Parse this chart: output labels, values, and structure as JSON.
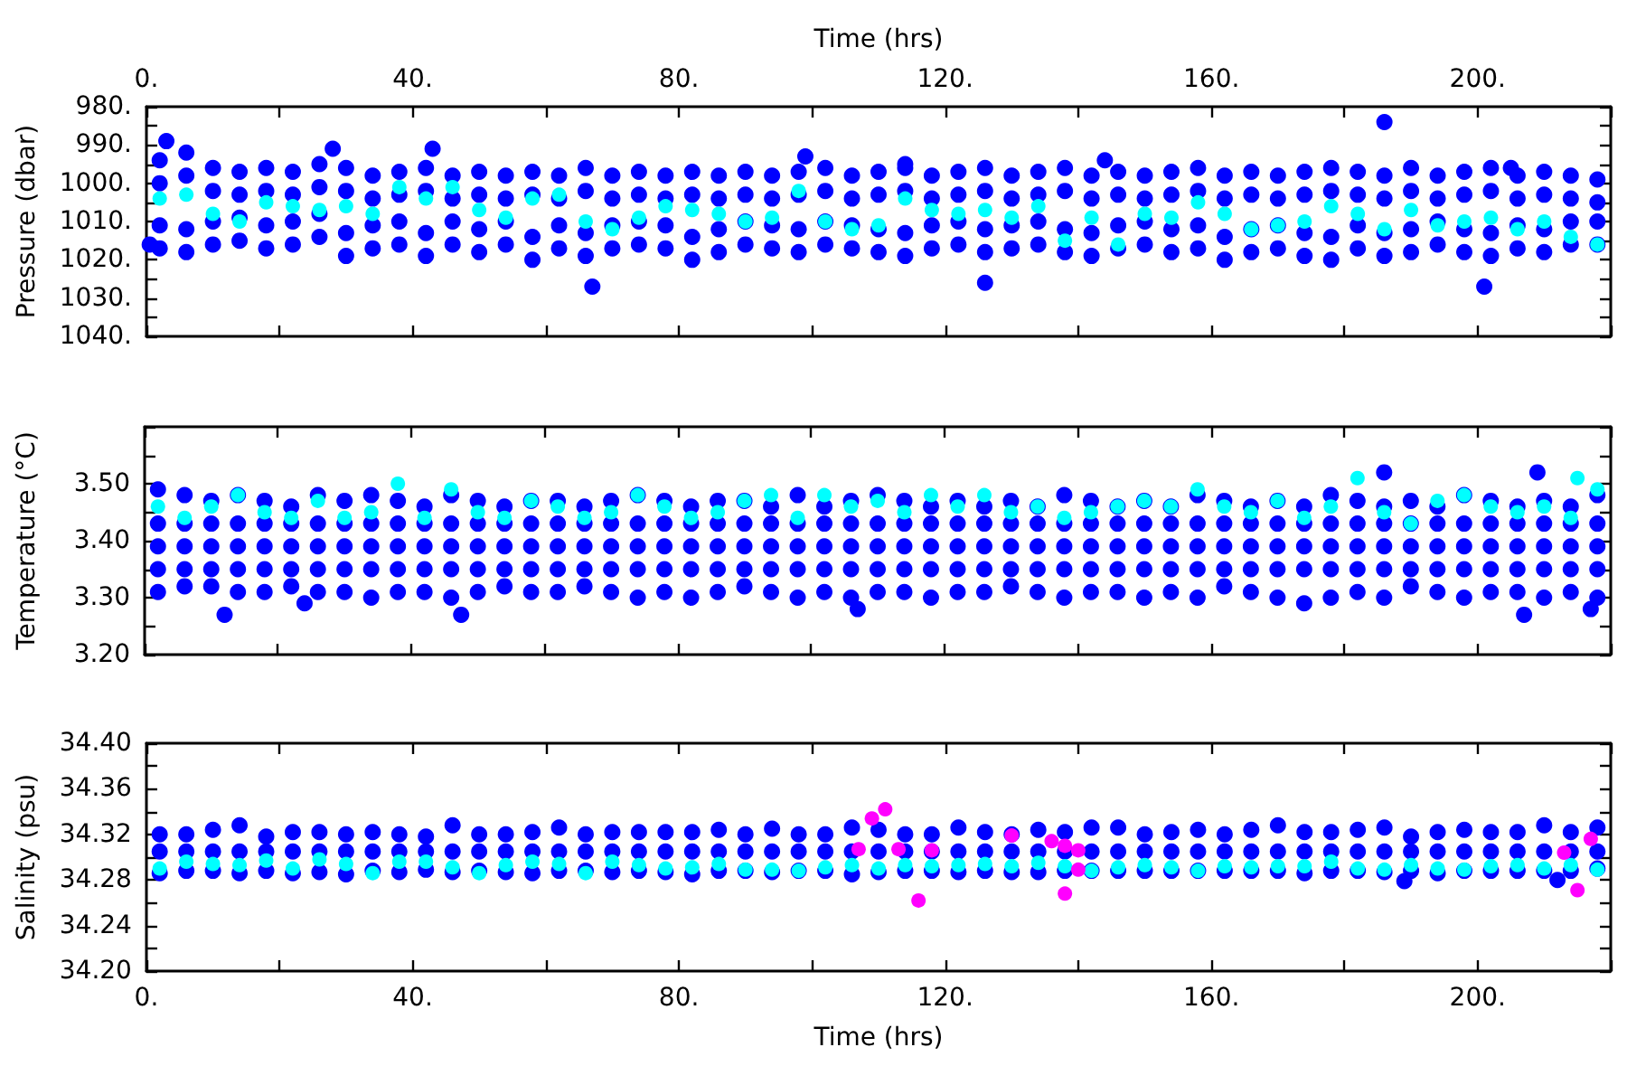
{
  "chart_data": [
    {
      "type": "scatter",
      "ylabel": "Pressure (dbar)",
      "x2label": "Time (hrs)",
      "marker": "circle",
      "tick_labels": "y",
      "xlim": [
        0,
        220
      ],
      "xticks": [
        0,
        20,
        40,
        60,
        80,
        100,
        120,
        140,
        160,
        180,
        200,
        220
      ],
      "x2lim": [
        0,
        220
      ],
      "x2ticks": [
        {
          "value": 0,
          "label": "0."
        },
        {
          "value": 20,
          "label": null
        },
        {
          "value": 40,
          "label": "40."
        },
        {
          "value": 60,
          "label": null
        },
        {
          "value": 80,
          "label": "80."
        },
        {
          "value": 100,
          "label": null
        },
        {
          "value": 120,
          "label": "120."
        },
        {
          "value": 140,
          "label": null
        },
        {
          "value": 160,
          "label": "160."
        },
        {
          "value": 180,
          "label": null
        },
        {
          "value": 200,
          "label": "200."
        },
        {
          "value": 220,
          "label": null
        }
      ],
      "ylim": [
        1040,
        980
      ],
      "yticks": [
        {
          "value": 980,
          "label": "980."
        },
        {
          "value": 985,
          "label": null
        },
        {
          "value": 990,
          "label": "990."
        },
        {
          "value": 995,
          "label": null
        },
        {
          "value": 1000,
          "label": "1000."
        },
        {
          "value": 1005,
          "label": null
        },
        {
          "value": 1010,
          "label": "1010."
        },
        {
          "value": 1015,
          "label": null
        },
        {
          "value": 1020,
          "label": "1020."
        },
        {
          "value": 1025,
          "label": null
        },
        {
          "value": 1030,
          "label": "1030."
        },
        {
          "value": 1035,
          "label": null
        },
        {
          "value": 1040,
          "label": "1040."
        }
      ],
      "series": [
        {
          "color": "#0000ff",
          "x": [
            2,
            2,
            2,
            2,
            6,
            6,
            6,
            6,
            10,
            10,
            10,
            10,
            14,
            14,
            14,
            14,
            18,
            18,
            18,
            18,
            22,
            22,
            22,
            22,
            26,
            26,
            26,
            26,
            30,
            30,
            30,
            30,
            34,
            34,
            34,
            34,
            38,
            38,
            38,
            38,
            42,
            42,
            42,
            42,
            46,
            46,
            46,
            46,
            50,
            50,
            50,
            50,
            54,
            54,
            54,
            54,
            58,
            58,
            58,
            58,
            62,
            62,
            62,
            62,
            66,
            66,
            66,
            66,
            70,
            70,
            70,
            70,
            74,
            74,
            74,
            74,
            78,
            78,
            78,
            78,
            82,
            82,
            82,
            82,
            86,
            86,
            86,
            86,
            90,
            90,
            90,
            90,
            94,
            94,
            94,
            94,
            98,
            98,
            98,
            98,
            102,
            102,
            102,
            102,
            106,
            106,
            106,
            106,
            110,
            110,
            110,
            110,
            114,
            114,
            114,
            114,
            118,
            118,
            118,
            118,
            122,
            122,
            122,
            122,
            126,
            126,
            126,
            126,
            130,
            130,
            130,
            130,
            134,
            134,
            134,
            134,
            138,
            138,
            138,
            138,
            142,
            142,
            142,
            142,
            146,
            146,
            146,
            146,
            150,
            150,
            150,
            150,
            154,
            154,
            154,
            154,
            158,
            158,
            158,
            158,
            162,
            162,
            162,
            162,
            166,
            166,
            166,
            166,
            170,
            170,
            170,
            170,
            174,
            174,
            174,
            174,
            178,
            178,
            178,
            178,
            182,
            182,
            182,
            182,
            186,
            186,
            186,
            186,
            190,
            190,
            190,
            190,
            194,
            194,
            194,
            194,
            198,
            198,
            198,
            198,
            202,
            202,
            202,
            202,
            206,
            206,
            206,
            206,
            210,
            210,
            210,
            210,
            214,
            214,
            214,
            214,
            218,
            218,
            218,
            218,
            0.5,
            3,
            28,
            43,
            67,
            99,
            114,
            126,
            144,
            186,
            201,
            205
          ],
          "values": [
            994,
            1000,
            1011,
            1017,
            992,
            998,
            1012,
            1018,
            996,
            1002,
            1010,
            1016,
            997,
            1003,
            1009,
            1015,
            996,
            1002,
            1011,
            1017,
            997,
            1003,
            1010,
            1016,
            995,
            1001,
            1008,
            1014,
            996,
            1002,
            1013,
            1019,
            998,
            1004,
            1011,
            1017,
            997,
            1003,
            1010,
            1016,
            996,
            1002,
            1013,
            1019,
            998,
            1004,
            1010,
            1016,
            997,
            1003,
            1012,
            1018,
            998,
            1004,
            1010,
            1016,
            997,
            1003,
            1014,
            1020,
            998,
            1004,
            1011,
            1017,
            996,
            1002,
            1013,
            1019,
            998,
            1004,
            1011,
            1017,
            997,
            1003,
            1010,
            1016,
            998,
            1004,
            1011,
            1017,
            997,
            1003,
            1014,
            1020,
            998,
            1004,
            1012,
            1018,
            997,
            1003,
            1010,
            1016,
            998,
            1004,
            1011,
            1017,
            997,
            1003,
            1012,
            1018,
            996,
            1002,
            1010,
            1016,
            998,
            1004,
            1011,
            1017,
            997,
            1003,
            1012,
            1018,
            996,
            1002,
            1013,
            1019,
            998,
            1004,
            1011,
            1017,
            997,
            1003,
            1010,
            1016,
            996,
            1002,
            1012,
            1018,
            998,
            1004,
            1011,
            1017,
            997,
            1003,
            1010,
            1016,
            996,
            1002,
            1012,
            1018,
            998,
            1004,
            1013,
            1019,
            997,
            1003,
            1011,
            1017,
            998,
            1004,
            1010,
            1016,
            997,
            1003,
            1012,
            1018,
            996,
            1002,
            1011,
            1017,
            998,
            1004,
            1014,
            1020,
            997,
            1003,
            1012,
            1018,
            998,
            1004,
            1011,
            1017,
            997,
            1003,
            1013,
            1019,
            996,
            1002,
            1014,
            1020,
            997,
            1003,
            1011,
            1017,
            998,
            1004,
            1013,
            1019,
            996,
            1002,
            1012,
            1018,
            998,
            1004,
            1010,
            1016,
            997,
            1003,
            1012,
            1018,
            996,
            1002,
            1013,
            1019,
            998,
            1004,
            1011,
            1017,
            997,
            1003,
            1012,
            1018,
            998,
            1004,
            1010,
            1016,
            999,
            1005,
            1010,
            1016,
            1016,
            989,
            991,
            991,
            1027,
            993,
            995,
            1026,
            994,
            984,
            1027,
            996
          ]
        },
        {
          "color": "#00ffff",
          "x": [
            2,
            6,
            10,
            14,
            18,
            22,
            26,
            30,
            34,
            38,
            42,
            46,
            50,
            54,
            58,
            62,
            66,
            70,
            74,
            78,
            82,
            86,
            90,
            94,
            98,
            102,
            106,
            110,
            114,
            118,
            122,
            126,
            130,
            134,
            138,
            142,
            146,
            150,
            154,
            158,
            162,
            166,
            170,
            174,
            178,
            182,
            186,
            190,
            194,
            198,
            202,
            206,
            210,
            214,
            218
          ],
          "values": [
            1004,
            1003,
            1008,
            1010,
            1005,
            1006,
            1007,
            1006,
            1008,
            1001,
            1004,
            1001,
            1007,
            1009,
            1004,
            1003,
            1010,
            1012,
            1009,
            1006,
            1007,
            1008,
            1010,
            1009,
            1002,
            1010,
            1012,
            1011,
            1004,
            1007,
            1008,
            1007,
            1009,
            1006,
            1015,
            1009,
            1016,
            1008,
            1009,
            1005,
            1008,
            1012,
            1011,
            1010,
            1006,
            1008,
            1012,
            1007,
            1011,
            1010,
            1009,
            1012,
            1010,
            1014,
            1016
          ]
        }
      ]
    },
    {
      "type": "scatter",
      "ylabel": "Temperature (°C)",
      "marker": "circle",
      "tick_labels": "y",
      "xlim": [
        0,
        220
      ],
      "xticks": [
        0,
        20,
        40,
        60,
        80,
        100,
        120,
        140,
        160,
        180,
        200,
        220
      ],
      "ylim": [
        3.2,
        3.6
      ],
      "yticks": [
        {
          "value": 3.2,
          "label": "3.20"
        },
        {
          "value": 3.25,
          "label": null
        },
        {
          "value": 3.3,
          "label": "3.30"
        },
        {
          "value": 3.35,
          "label": null
        },
        {
          "value": 3.4,
          "label": "3.40"
        },
        {
          "value": 3.45,
          "label": null
        },
        {
          "value": 3.5,
          "label": "3.50"
        },
        {
          "value": 3.55,
          "label": null
        },
        {
          "value": 3.6,
          "label": null
        }
      ],
      "series": [
        {
          "color": "#0000ff",
          "x": [
            2,
            2,
            2,
            2,
            2,
            6,
            6,
            6,
            6,
            6,
            10,
            10,
            10,
            10,
            10,
            14,
            14,
            14,
            14,
            14,
            18,
            18,
            18,
            18,
            18,
            22,
            22,
            22,
            22,
            22,
            26,
            26,
            26,
            26,
            26,
            30,
            30,
            30,
            30,
            30,
            34,
            34,
            34,
            34,
            34,
            38,
            38,
            38,
            38,
            38,
            42,
            42,
            42,
            42,
            42,
            46,
            46,
            46,
            46,
            46,
            50,
            50,
            50,
            50,
            50,
            54,
            54,
            54,
            54,
            54,
            58,
            58,
            58,
            58,
            58,
            62,
            62,
            62,
            62,
            62,
            66,
            66,
            66,
            66,
            66,
            70,
            70,
            70,
            70,
            70,
            74,
            74,
            74,
            74,
            74,
            78,
            78,
            78,
            78,
            78,
            82,
            82,
            82,
            82,
            82,
            86,
            86,
            86,
            86,
            86,
            90,
            90,
            90,
            90,
            90,
            94,
            94,
            94,
            94,
            94,
            98,
            98,
            98,
            98,
            98,
            102,
            102,
            102,
            102,
            102,
            106,
            106,
            106,
            106,
            106,
            110,
            110,
            110,
            110,
            110,
            114,
            114,
            114,
            114,
            114,
            118,
            118,
            118,
            118,
            118,
            122,
            122,
            122,
            122,
            122,
            126,
            126,
            126,
            126,
            126,
            130,
            130,
            130,
            130,
            130,
            134,
            134,
            134,
            134,
            134,
            138,
            138,
            138,
            138,
            138,
            142,
            142,
            142,
            142,
            142,
            146,
            146,
            146,
            146,
            146,
            150,
            150,
            150,
            150,
            150,
            154,
            154,
            154,
            154,
            154,
            158,
            158,
            158,
            158,
            158,
            162,
            162,
            162,
            162,
            162,
            166,
            166,
            166,
            166,
            166,
            170,
            170,
            170,
            170,
            170,
            174,
            174,
            174,
            174,
            174,
            178,
            178,
            178,
            178,
            178,
            182,
            182,
            182,
            182,
            182,
            186,
            186,
            186,
            186,
            186,
            190,
            190,
            190,
            190,
            190,
            194,
            194,
            194,
            194,
            194,
            198,
            198,
            198,
            198,
            198,
            202,
            202,
            202,
            202,
            202,
            206,
            206,
            206,
            206,
            206,
            210,
            210,
            210,
            210,
            210,
            214,
            214,
            214,
            214,
            214,
            218,
            218,
            218,
            218,
            218,
            12,
            24,
            47.5,
            107,
            186,
            209,
            207,
            217
          ],
          "values": [
            3.49,
            3.43,
            3.39,
            3.35,
            3.31,
            3.48,
            3.43,
            3.39,
            3.35,
            3.32,
            3.47,
            3.43,
            3.39,
            3.35,
            3.32,
            3.48,
            3.43,
            3.39,
            3.35,
            3.31,
            3.47,
            3.43,
            3.39,
            3.35,
            3.31,
            3.46,
            3.43,
            3.39,
            3.35,
            3.32,
            3.48,
            3.43,
            3.39,
            3.35,
            3.31,
            3.47,
            3.43,
            3.39,
            3.35,
            3.31,
            3.48,
            3.43,
            3.39,
            3.35,
            3.3,
            3.47,
            3.43,
            3.39,
            3.35,
            3.31,
            3.46,
            3.43,
            3.39,
            3.35,
            3.31,
            3.48,
            3.43,
            3.39,
            3.35,
            3.3,
            3.47,
            3.43,
            3.39,
            3.35,
            3.31,
            3.46,
            3.43,
            3.39,
            3.35,
            3.32,
            3.47,
            3.43,
            3.39,
            3.35,
            3.31,
            3.47,
            3.43,
            3.39,
            3.35,
            3.31,
            3.46,
            3.43,
            3.39,
            3.35,
            3.32,
            3.47,
            3.43,
            3.39,
            3.35,
            3.31,
            3.48,
            3.43,
            3.39,
            3.35,
            3.3,
            3.47,
            3.43,
            3.39,
            3.35,
            3.31,
            3.46,
            3.43,
            3.39,
            3.35,
            3.3,
            3.47,
            3.43,
            3.39,
            3.35,
            3.31,
            3.47,
            3.43,
            3.39,
            3.35,
            3.32,
            3.46,
            3.43,
            3.39,
            3.35,
            3.31,
            3.48,
            3.43,
            3.39,
            3.35,
            3.3,
            3.46,
            3.43,
            3.39,
            3.35,
            3.31,
            3.47,
            3.43,
            3.39,
            3.35,
            3.3,
            3.48,
            3.43,
            3.39,
            3.35,
            3.31,
            3.47,
            3.43,
            3.39,
            3.35,
            3.31,
            3.46,
            3.43,
            3.39,
            3.35,
            3.3,
            3.47,
            3.43,
            3.39,
            3.35,
            3.31,
            3.46,
            3.43,
            3.39,
            3.35,
            3.31,
            3.47,
            3.43,
            3.39,
            3.35,
            3.32,
            3.46,
            3.43,
            3.39,
            3.35,
            3.31,
            3.48,
            3.43,
            3.39,
            3.35,
            3.3,
            3.47,
            3.43,
            3.39,
            3.35,
            3.31,
            3.46,
            3.43,
            3.39,
            3.35,
            3.31,
            3.47,
            3.43,
            3.39,
            3.35,
            3.3,
            3.46,
            3.43,
            3.39,
            3.35,
            3.31,
            3.48,
            3.43,
            3.39,
            3.35,
            3.3,
            3.47,
            3.43,
            3.39,
            3.35,
            3.32,
            3.46,
            3.43,
            3.39,
            3.35,
            3.31,
            3.47,
            3.43,
            3.39,
            3.35,
            3.3,
            3.46,
            3.43,
            3.39,
            3.35,
            3.29,
            3.48,
            3.43,
            3.39,
            3.35,
            3.3,
            3.47,
            3.43,
            3.39,
            3.35,
            3.31,
            3.46,
            3.43,
            3.39,
            3.35,
            3.3,
            3.47,
            3.43,
            3.39,
            3.35,
            3.32,
            3.46,
            3.43,
            3.39,
            3.35,
            3.31,
            3.48,
            3.43,
            3.39,
            3.35,
            3.3,
            3.47,
            3.43,
            3.39,
            3.35,
            3.31,
            3.46,
            3.43,
            3.39,
            3.35,
            3.31,
            3.47,
            3.43,
            3.39,
            3.35,
            3.3,
            3.46,
            3.43,
            3.39,
            3.35,
            3.31,
            3.48,
            3.43,
            3.39,
            3.35,
            3.3,
            3.27,
            3.29,
            3.27,
            3.28,
            3.52,
            3.52,
            3.27,
            3.28
          ]
        },
        {
          "color": "#00ffff",
          "x": [
            2,
            6,
            10,
            14,
            18,
            22,
            26,
            30,
            34,
            38,
            42,
            46,
            50,
            54,
            58,
            62,
            66,
            70,
            74,
            78,
            82,
            86,
            90,
            94,
            98,
            102,
            106,
            110,
            114,
            118,
            122,
            126,
            130,
            134,
            138,
            142,
            146,
            150,
            154,
            158,
            162,
            166,
            170,
            174,
            178,
            182,
            186,
            190,
            194,
            198,
            202,
            206,
            210,
            214,
            218,
            215
          ],
          "values": [
            3.46,
            3.44,
            3.46,
            3.48,
            3.45,
            3.44,
            3.47,
            3.44,
            3.45,
            3.5,
            3.44,
            3.49,
            3.45,
            3.44,
            3.47,
            3.46,
            3.44,
            3.45,
            3.48,
            3.46,
            3.44,
            3.45,
            3.47,
            3.48,
            3.44,
            3.48,
            3.46,
            3.47,
            3.45,
            3.48,
            3.46,
            3.48,
            3.45,
            3.46,
            3.44,
            3.45,
            3.46,
            3.47,
            3.46,
            3.49,
            3.46,
            3.45,
            3.47,
            3.44,
            3.46,
            3.51,
            3.45,
            3.43,
            3.47,
            3.48,
            3.46,
            3.45,
            3.46,
            3.44,
            3.49,
            3.51
          ]
        }
      ]
    },
    {
      "type": "scatter",
      "ylabel": "Salinity (psu)",
      "xlabel": "Time (hrs)",
      "marker": "circle",
      "xlim": [
        0,
        220
      ],
      "xticks": [
        {
          "value": 0,
          "label": "0."
        },
        {
          "value": 20,
          "label": null
        },
        {
          "value": 40,
          "label": "40."
        },
        {
          "value": 60,
          "label": null
        },
        {
          "value": 80,
          "label": "80."
        },
        {
          "value": 100,
          "label": null
        },
        {
          "value": 120,
          "label": "120."
        },
        {
          "value": 140,
          "label": null
        },
        {
          "value": 160,
          "label": "160."
        },
        {
          "value": 180,
          "label": null
        },
        {
          "value": 200,
          "label": "200."
        },
        {
          "value": 220,
          "label": null
        }
      ],
      "ylim": [
        34.2,
        34.4
      ],
      "yticks": [
        {
          "value": 34.2,
          "label": "34.20"
        },
        {
          "value": 34.22,
          "label": null
        },
        {
          "value": 34.24,
          "label": "34.24"
        },
        {
          "value": 34.26,
          "label": null
        },
        {
          "value": 34.28,
          "label": "34.28"
        },
        {
          "value": 34.3,
          "label": null
        },
        {
          "value": 34.32,
          "label": "34.32"
        },
        {
          "value": 34.34,
          "label": null
        },
        {
          "value": 34.36,
          "label": "34.36"
        },
        {
          "value": 34.38,
          "label": null
        },
        {
          "value": 34.4,
          "label": "34.40"
        }
      ],
      "series": [
        {
          "color": "#0000ff",
          "x": [
            2,
            2,
            2,
            6,
            6,
            6,
            10,
            10,
            10,
            14,
            14,
            14,
            18,
            18,
            18,
            22,
            22,
            22,
            26,
            26,
            26,
            30,
            30,
            30,
            34,
            34,
            34,
            38,
            38,
            38,
            42,
            42,
            42,
            46,
            46,
            46,
            50,
            50,
            50,
            54,
            54,
            54,
            58,
            58,
            58,
            62,
            62,
            62,
            66,
            66,
            66,
            70,
            70,
            70,
            74,
            74,
            74,
            78,
            78,
            78,
            82,
            82,
            82,
            86,
            86,
            86,
            90,
            90,
            90,
            94,
            94,
            94,
            98,
            98,
            98,
            102,
            102,
            102,
            106,
            106,
            106,
            110,
            110,
            110,
            114,
            114,
            114,
            118,
            118,
            118,
            122,
            122,
            122,
            126,
            126,
            126,
            130,
            130,
            130,
            134,
            134,
            134,
            138,
            138,
            138,
            142,
            142,
            142,
            146,
            146,
            146,
            150,
            150,
            150,
            154,
            154,
            154,
            158,
            158,
            158,
            162,
            162,
            162,
            166,
            166,
            166,
            170,
            170,
            170,
            174,
            174,
            174,
            178,
            178,
            178,
            182,
            182,
            182,
            186,
            186,
            186,
            190,
            190,
            190,
            194,
            194,
            194,
            198,
            198,
            198,
            202,
            202,
            202,
            206,
            206,
            206,
            210,
            210,
            210,
            214,
            214,
            214,
            218,
            218,
            218,
            189,
            212
          ],
          "values": [
            34.32,
            34.305,
            34.286,
            34.32,
            34.305,
            34.288,
            34.324,
            34.305,
            34.288,
            34.328,
            34.305,
            34.286,
            34.318,
            34.305,
            34.288,
            34.322,
            34.305,
            34.286,
            34.322,
            34.305,
            34.287,
            34.32,
            34.305,
            34.285,
            34.322,
            34.305,
            34.288,
            34.32,
            34.305,
            34.287,
            34.318,
            34.305,
            34.289,
            34.328,
            34.305,
            34.287,
            34.32,
            34.305,
            34.288,
            34.32,
            34.305,
            34.287,
            34.322,
            34.305,
            34.286,
            34.326,
            34.305,
            34.288,
            34.32,
            34.305,
            34.288,
            34.322,
            34.305,
            34.287,
            34.322,
            34.305,
            34.288,
            34.322,
            34.305,
            34.287,
            34.322,
            34.305,
            34.285,
            34.324,
            34.305,
            34.288,
            34.32,
            34.305,
            34.288,
            34.325,
            34.305,
            34.287,
            34.32,
            34.305,
            34.288,
            34.32,
            34.305,
            34.288,
            34.326,
            34.305,
            34.285,
            34.324,
            34.305,
            34.287,
            34.32,
            34.305,
            34.288,
            34.32,
            34.305,
            34.288,
            34.326,
            34.305,
            34.287,
            34.322,
            34.305,
            34.288,
            34.32,
            34.305,
            34.287,
            34.324,
            34.305,
            34.287,
            34.322,
            34.305,
            34.288,
            34.326,
            34.305,
            34.288,
            34.326,
            34.305,
            34.288,
            34.32,
            34.305,
            34.288,
            34.322,
            34.305,
            34.288,
            34.324,
            34.305,
            34.288,
            34.32,
            34.305,
            34.288,
            34.324,
            34.305,
            34.288,
            34.328,
            34.305,
            34.288,
            34.322,
            34.305,
            34.286,
            34.322,
            34.305,
            34.288,
            34.324,
            34.305,
            34.288,
            34.326,
            34.305,
            34.287,
            34.318,
            34.305,
            34.288,
            34.322,
            34.305,
            34.286,
            34.324,
            34.305,
            34.288,
            34.322,
            34.305,
            34.288,
            34.322,
            34.305,
            34.288,
            34.328,
            34.305,
            34.288,
            34.322,
            34.305,
            34.288,
            34.326,
            34.305,
            34.29,
            34.279,
            34.28
          ]
        },
        {
          "color": "#00ffff",
          "x": [
            2,
            6,
            10,
            14,
            18,
            22,
            26,
            30,
            34,
            38,
            42,
            46,
            50,
            54,
            58,
            62,
            66,
            70,
            74,
            78,
            82,
            86,
            90,
            94,
            98,
            102,
            106,
            110,
            114,
            118,
            122,
            126,
            130,
            134,
            138,
            142,
            146,
            150,
            154,
            158,
            162,
            166,
            170,
            174,
            178,
            182,
            186,
            190,
            194,
            198,
            202,
            206,
            210,
            214,
            218
          ],
          "values": [
            34.29,
            34.296,
            34.294,
            34.293,
            34.297,
            34.29,
            34.298,
            34.294,
            34.286,
            34.296,
            34.296,
            34.291,
            34.286,
            34.293,
            34.296,
            34.294,
            34.286,
            34.296,
            34.293,
            34.29,
            34.291,
            34.294,
            34.289,
            34.289,
            34.288,
            34.291,
            34.293,
            34.29,
            34.293,
            34.292,
            34.293,
            34.294,
            34.292,
            34.295,
            34.292,
            34.288,
            34.291,
            34.293,
            34.291,
            34.288,
            34.292,
            34.291,
            34.292,
            34.292,
            34.296,
            34.29,
            34.289,
            34.293,
            34.29,
            34.289,
            34.292,
            34.293,
            34.29,
            34.293,
            34.289
          ]
        },
        {
          "color": "#ff00ff",
          "x": [
            107,
            109,
            111,
            113,
            116,
            118,
            130,
            136,
            138,
            138,
            140,
            140,
            213,
            215,
            217
          ],
          "values": [
            34.307,
            34.334,
            34.342,
            34.307,
            34.262,
            34.306,
            34.319,
            34.314,
            34.31,
            34.268,
            34.306,
            34.289,
            34.304,
            34.271,
            34.316
          ]
        }
      ]
    }
  ]
}
